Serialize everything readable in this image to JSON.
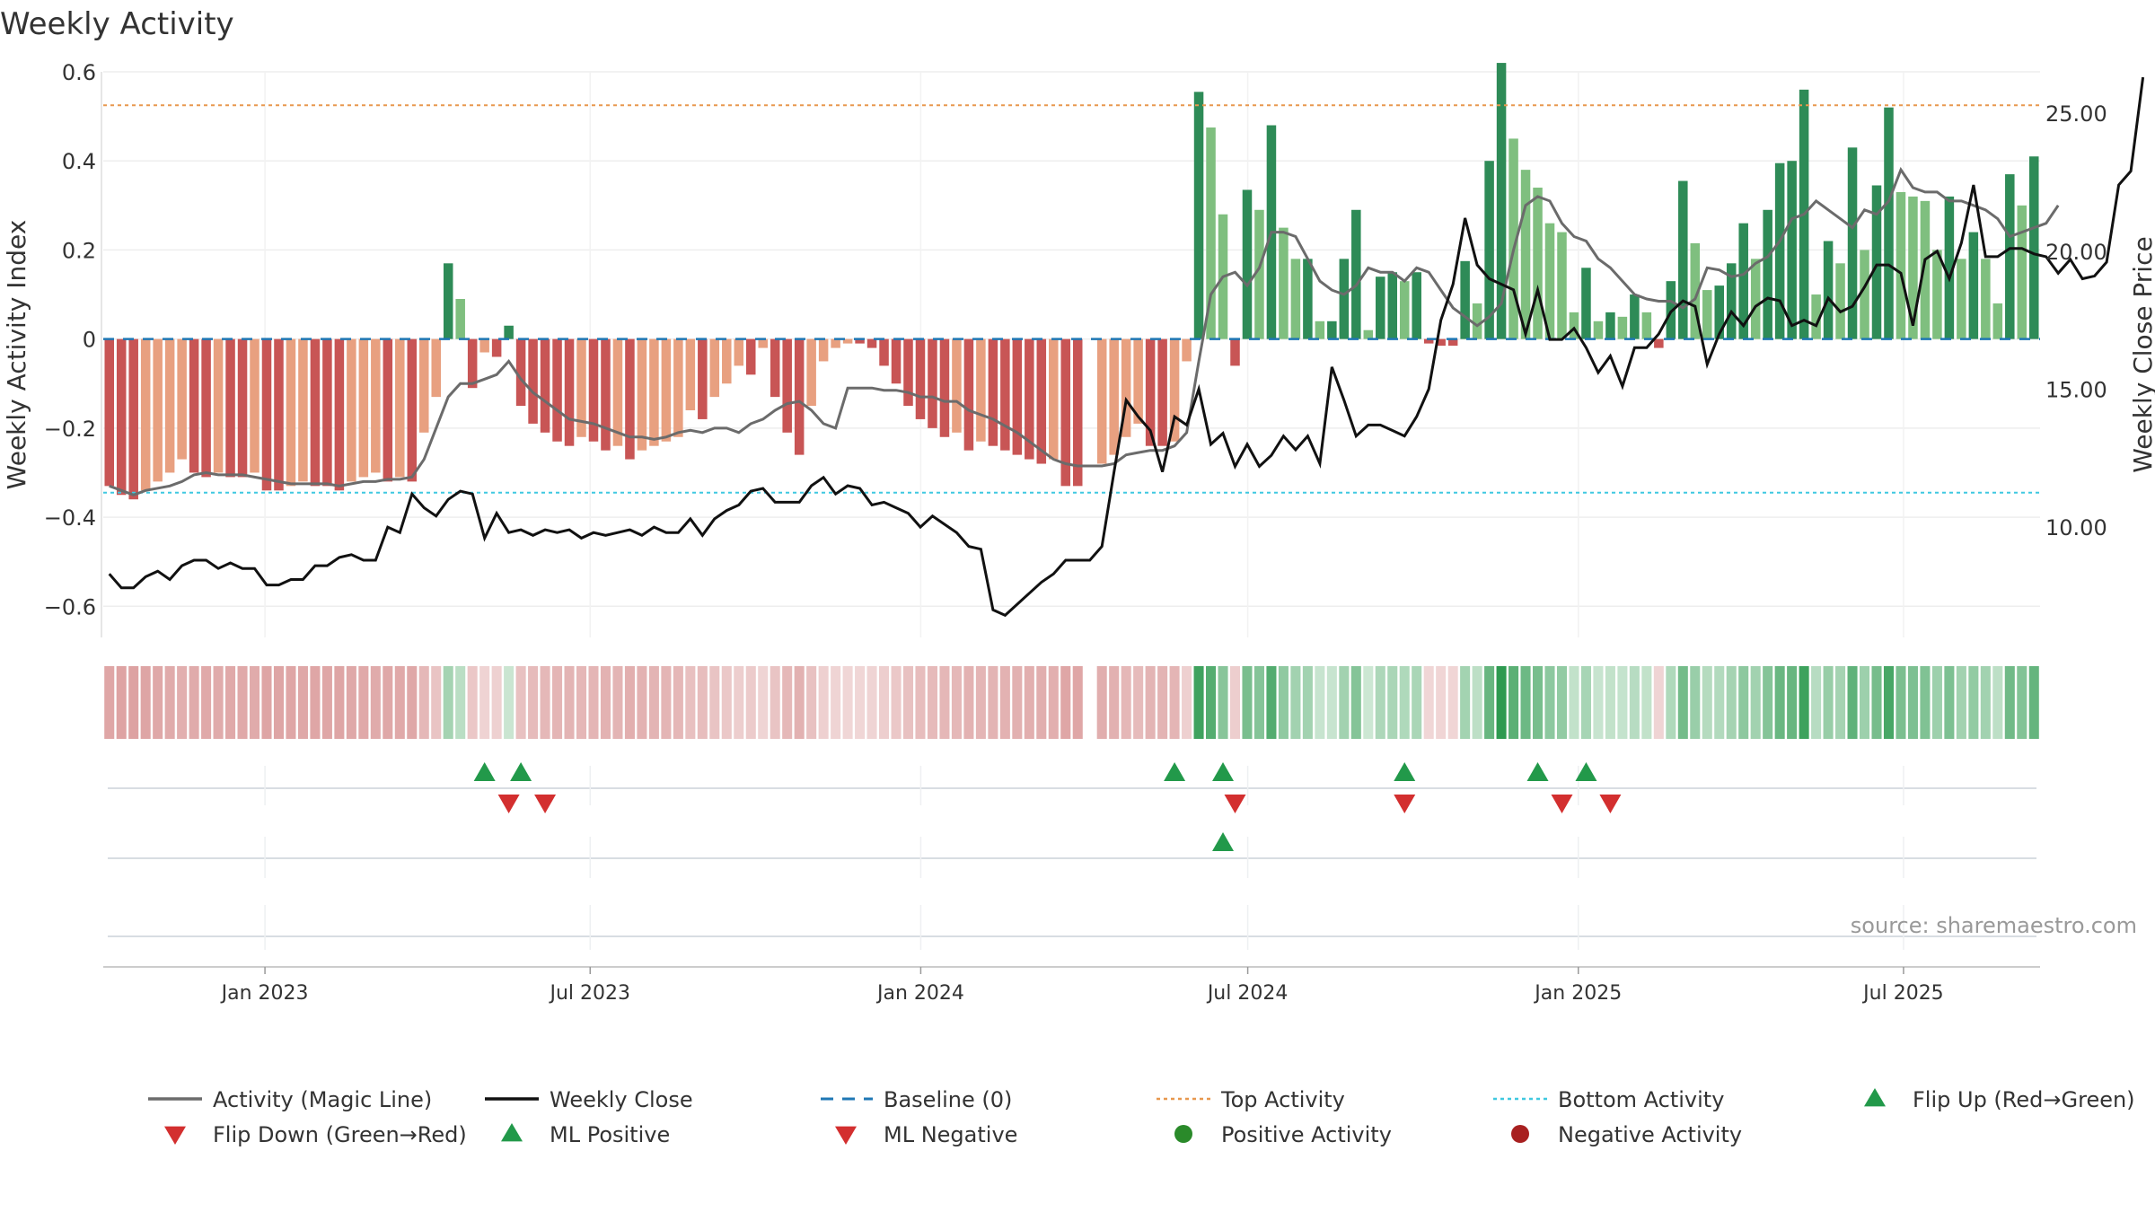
{
  "chart_data": {
    "type": "bar",
    "title": "Weekly Activity",
    "ylabel": "Weekly Activity Index",
    "y2label": "Weekly Close Price",
    "ylim": [
      -0.67,
      0.6
    ],
    "y2lim": [
      6.0,
      26.5
    ],
    "yticks": [
      0.6,
      0.4,
      0.2,
      0,
      -0.2,
      -0.4,
      -0.6
    ],
    "ytick_labels": [
      "0.6",
      "0.4",
      "0.2",
      "0",
      "−0.2",
      "−0.4",
      "−0.6"
    ],
    "y2ticks": [
      25,
      20,
      15,
      10
    ],
    "y2tick_labels": [
      "25.00",
      "20.00",
      "15.00",
      "10.00"
    ],
    "start_date": "2022-10-03",
    "end_date": "2025-09-15",
    "xticks": [
      {
        "label": "Jan 2023",
        "date": "2023-01-01"
      },
      {
        "label": "Jul 2023",
        "date": "2023-07-01"
      },
      {
        "label": "Jan 2024",
        "date": "2024-01-01"
      },
      {
        "label": "Jul 2024",
        "date": "2024-07-01"
      },
      {
        "label": "Jan 2025",
        "date": "2025-01-01"
      },
      {
        "label": "Jul 2025",
        "date": "2025-07-01"
      }
    ],
    "top_activity": 0.525,
    "bottom_activity": -0.345,
    "baseline": 0,
    "series": [
      {
        "name": "Weekly Activity Index",
        "type": "bar",
        "values": [
          -0.33,
          -0.35,
          -0.36,
          -0.34,
          -0.32,
          -0.3,
          -0.27,
          -0.3,
          -0.31,
          -0.3,
          -0.31,
          -0.31,
          -0.3,
          -0.34,
          -0.34,
          -0.33,
          -0.32,
          -0.33,
          -0.33,
          -0.34,
          -0.32,
          -0.31,
          -0.3,
          -0.32,
          -0.31,
          -0.32,
          -0.21,
          -0.13,
          0.17,
          0.09,
          -0.11,
          -0.03,
          -0.04,
          0.03,
          -0.15,
          -0.19,
          -0.21,
          -0.23,
          -0.24,
          -0.22,
          -0.23,
          -0.25,
          -0.24,
          -0.27,
          -0.25,
          -0.24,
          -0.23,
          -0.22,
          -0.16,
          -0.18,
          -0.13,
          -0.1,
          -0.06,
          -0.08,
          -0.02,
          -0.13,
          -0.21,
          -0.26,
          -0.15,
          -0.05,
          -0.02,
          -0.01,
          -0.01,
          -0.02,
          -0.06,
          -0.1,
          -0.15,
          -0.18,
          -0.2,
          -0.22,
          -0.21,
          -0.25,
          -0.23,
          -0.24,
          -0.25,
          -0.26,
          -0.27,
          -0.28,
          -0.27,
          -0.33,
          -0.33,
          null,
          -0.28,
          -0.26,
          -0.22,
          -0.19,
          -0.24,
          -0.24,
          -0.23,
          -0.05,
          0.555,
          0.475,
          0.28,
          -0.06,
          0.335,
          0.29,
          0.48,
          0.25,
          0.18,
          0.18,
          0.04,
          0.04,
          0.18,
          0.29,
          0.02,
          0.14,
          0.15,
          0.13,
          0.15,
          -0.01,
          -0.015,
          -0.015,
          0.175,
          0.08,
          0.4,
          0.62,
          0.45,
          0.38,
          0.34,
          0.26,
          0.24,
          0.06,
          0.16,
          0.04,
          0.06,
          0.05,
          0.1,
          0.06,
          -0.02,
          0.13,
          0.355,
          0.215,
          0.11,
          0.12,
          0.17,
          0.26,
          0.18,
          0.29,
          0.395,
          0.4,
          0.56,
          0.1,
          0.22,
          0.17,
          0.43,
          0.2,
          0.345,
          0.52,
          0.33,
          0.32,
          0.31,
          0.2,
          0.32,
          0.18,
          0.24,
          0.18,
          0.08,
          0.37,
          0.3,
          0.41
        ]
      },
      {
        "name": "Activity (Magic Line)",
        "type": "line",
        "values": [
          -0.33,
          -0.34,
          -0.35,
          -0.34,
          -0.335,
          -0.33,
          -0.32,
          -0.305,
          -0.3,
          -0.305,
          -0.305,
          -0.305,
          -0.31,
          -0.315,
          -0.32,
          -0.325,
          -0.325,
          -0.325,
          -0.325,
          -0.33,
          -0.325,
          -0.32,
          -0.32,
          -0.315,
          -0.315,
          -0.31,
          -0.27,
          -0.2,
          -0.13,
          -0.1,
          -0.1,
          -0.09,
          -0.08,
          -0.05,
          -0.09,
          -0.12,
          -0.14,
          -0.16,
          -0.18,
          -0.185,
          -0.19,
          -0.2,
          -0.21,
          -0.22,
          -0.22,
          -0.225,
          -0.22,
          -0.21,
          -0.205,
          -0.21,
          -0.2,
          -0.2,
          -0.21,
          -0.19,
          -0.18,
          -0.16,
          -0.145,
          -0.14,
          -0.16,
          -0.19,
          -0.2,
          -0.11,
          -0.11,
          -0.11,
          -0.115,
          -0.115,
          -0.12,
          -0.13,
          -0.13,
          -0.14,
          -0.14,
          -0.16,
          -0.17,
          -0.18,
          -0.195,
          -0.21,
          -0.23,
          -0.25,
          -0.27,
          -0.28,
          -0.285,
          -0.285,
          -0.285,
          -0.28,
          -0.26,
          -0.255,
          -0.25,
          -0.25,
          -0.24,
          -0.21,
          -0.05,
          0.1,
          0.14,
          0.15,
          0.12,
          0.16,
          0.24,
          0.24,
          0.23,
          0.18,
          0.13,
          0.11,
          0.1,
          0.12,
          0.16,
          0.15,
          0.15,
          0.13,
          0.16,
          0.15,
          0.11,
          0.07,
          0.05,
          0.03,
          0.05,
          0.08,
          0.2,
          0.3,
          0.32,
          0.31,
          0.26,
          0.23,
          0.22,
          0.18,
          0.16,
          0.13,
          0.1,
          0.09,
          0.085,
          0.085,
          0.07,
          0.09,
          0.16,
          0.155,
          0.14,
          0.145,
          0.17,
          0.185,
          0.22,
          0.27,
          0.28,
          0.31,
          0.29,
          0.27,
          0.25,
          0.29,
          0.28,
          0.31,
          0.38,
          0.34,
          0.33,
          0.33,
          0.31,
          0.31,
          0.3,
          0.29,
          0.27,
          0.23,
          0.24,
          0.25,
          0.26,
          0.3
        ]
      },
      {
        "name": "Weekly Close",
        "type": "line",
        "axis": "right",
        "values": [
          8.3,
          7.8,
          7.8,
          8.2,
          8.4,
          8.1,
          8.6,
          8.8,
          8.8,
          8.5,
          8.7,
          8.5,
          8.5,
          7.9,
          7.9,
          8.1,
          8.1,
          8.6,
          8.6,
          8.9,
          9.0,
          8.8,
          8.8,
          10.0,
          9.8,
          11.2,
          10.7,
          10.4,
          11.0,
          11.3,
          11.2,
          9.6,
          10.5,
          9.8,
          9.9,
          9.7,
          9.9,
          9.8,
          9.9,
          9.6,
          9.8,
          9.7,
          9.8,
          9.9,
          9.7,
          10.0,
          9.8,
          9.8,
          10.3,
          9.7,
          10.3,
          10.6,
          10.8,
          11.3,
          11.4,
          10.9,
          10.9,
          10.9,
          11.5,
          11.8,
          11.2,
          11.5,
          11.4,
          10.8,
          10.9,
          10.7,
          10.5,
          10.0,
          10.4,
          10.1,
          9.8,
          9.3,
          9.2,
          7.0,
          6.8,
          7.2,
          7.6,
          8.0,
          8.3,
          8.8,
          8.8,
          8.8,
          9.3,
          12.0,
          14.6,
          14.0,
          13.5,
          12.0,
          14.0,
          13.7,
          15.0,
          13.0,
          13.4,
          12.2,
          13.0,
          12.2,
          12.6,
          13.3,
          12.8,
          13.3,
          12.3,
          15.8,
          14.6,
          13.3,
          13.7,
          13.7,
          13.5,
          13.3,
          14.0,
          15.0,
          17.5,
          18.8,
          21.2,
          19.5,
          19.0,
          18.8,
          18.6,
          17.0,
          18.6,
          16.8,
          16.8,
          17.2,
          16.5,
          15.6,
          16.2,
          15.1,
          16.5,
          16.5,
          17.0,
          17.8,
          18.2,
          18.0,
          15.9,
          17.0,
          17.8,
          17.3,
          18.0,
          18.3,
          18.2,
          17.3,
          17.5,
          17.3,
          18.3,
          17.8,
          18.0,
          18.7,
          19.5,
          19.5,
          19.2,
          17.3,
          19.7,
          20.0,
          19.0,
          20.3,
          22.4,
          19.8,
          19.8,
          20.1,
          20.1,
          19.9,
          19.8,
          19.2,
          19.7,
          19.0,
          19.1,
          19.6,
          22.4,
          22.9,
          26.3
        ]
      }
    ],
    "flip_up_row1_weeks": [
      31,
      34,
      88,
      92,
      107,
      118,
      122
    ],
    "flip_down_row1_weeks": [
      33,
      36,
      93,
      107,
      120,
      124
    ],
    "flip_up_row2_weeks": [
      92
    ],
    "legend": [
      {
        "label": "Activity (Magic Line)",
        "marker": "line",
        "color": "#6b6b6b"
      },
      {
        "label": "Weekly Close",
        "marker": "line",
        "color": "#111111"
      },
      {
        "label": "Baseline (0)",
        "marker": "dash",
        "color": "#1f77b4"
      },
      {
        "label": "Top Activity",
        "marker": "dotted",
        "color": "#e8984f"
      },
      {
        "label": "Bottom Activity",
        "marker": "dotted",
        "color": "#3fc8e0"
      },
      {
        "label": "Flip Up (Red→Green)",
        "marker": "triangle-up",
        "color": "#22994a"
      },
      {
        "label": "Flip Down (Green→Red)",
        "marker": "triangle-down",
        "color": "#d32f2f"
      },
      {
        "label": "ML Positive",
        "marker": "triangle-up",
        "color": "#22994a"
      },
      {
        "label": "ML Negative",
        "marker": "triangle-down",
        "color": "#d32f2f"
      },
      {
        "label": "Positive Activity",
        "marker": "circle",
        "color": "#2a8a2a"
      },
      {
        "label": "Negative Activity",
        "marker": "circle",
        "color": "#a82020"
      }
    ],
    "legend_position": "bottom",
    "source": "source: sharemaestro.com",
    "colors": {
      "dark_green": "#2e8b57",
      "light_green": "#7fbf7f",
      "dark_red": "#c85555",
      "light_red": "#e8a080",
      "magic_line": "#6b6b6b",
      "close_line": "#111111",
      "baseline": "#1f77b4",
      "top_activity": "#e8984f",
      "bottom_activity": "#3fc8e0",
      "up_marker": "#22994a",
      "down_marker": "#d32f2f"
    }
  }
}
